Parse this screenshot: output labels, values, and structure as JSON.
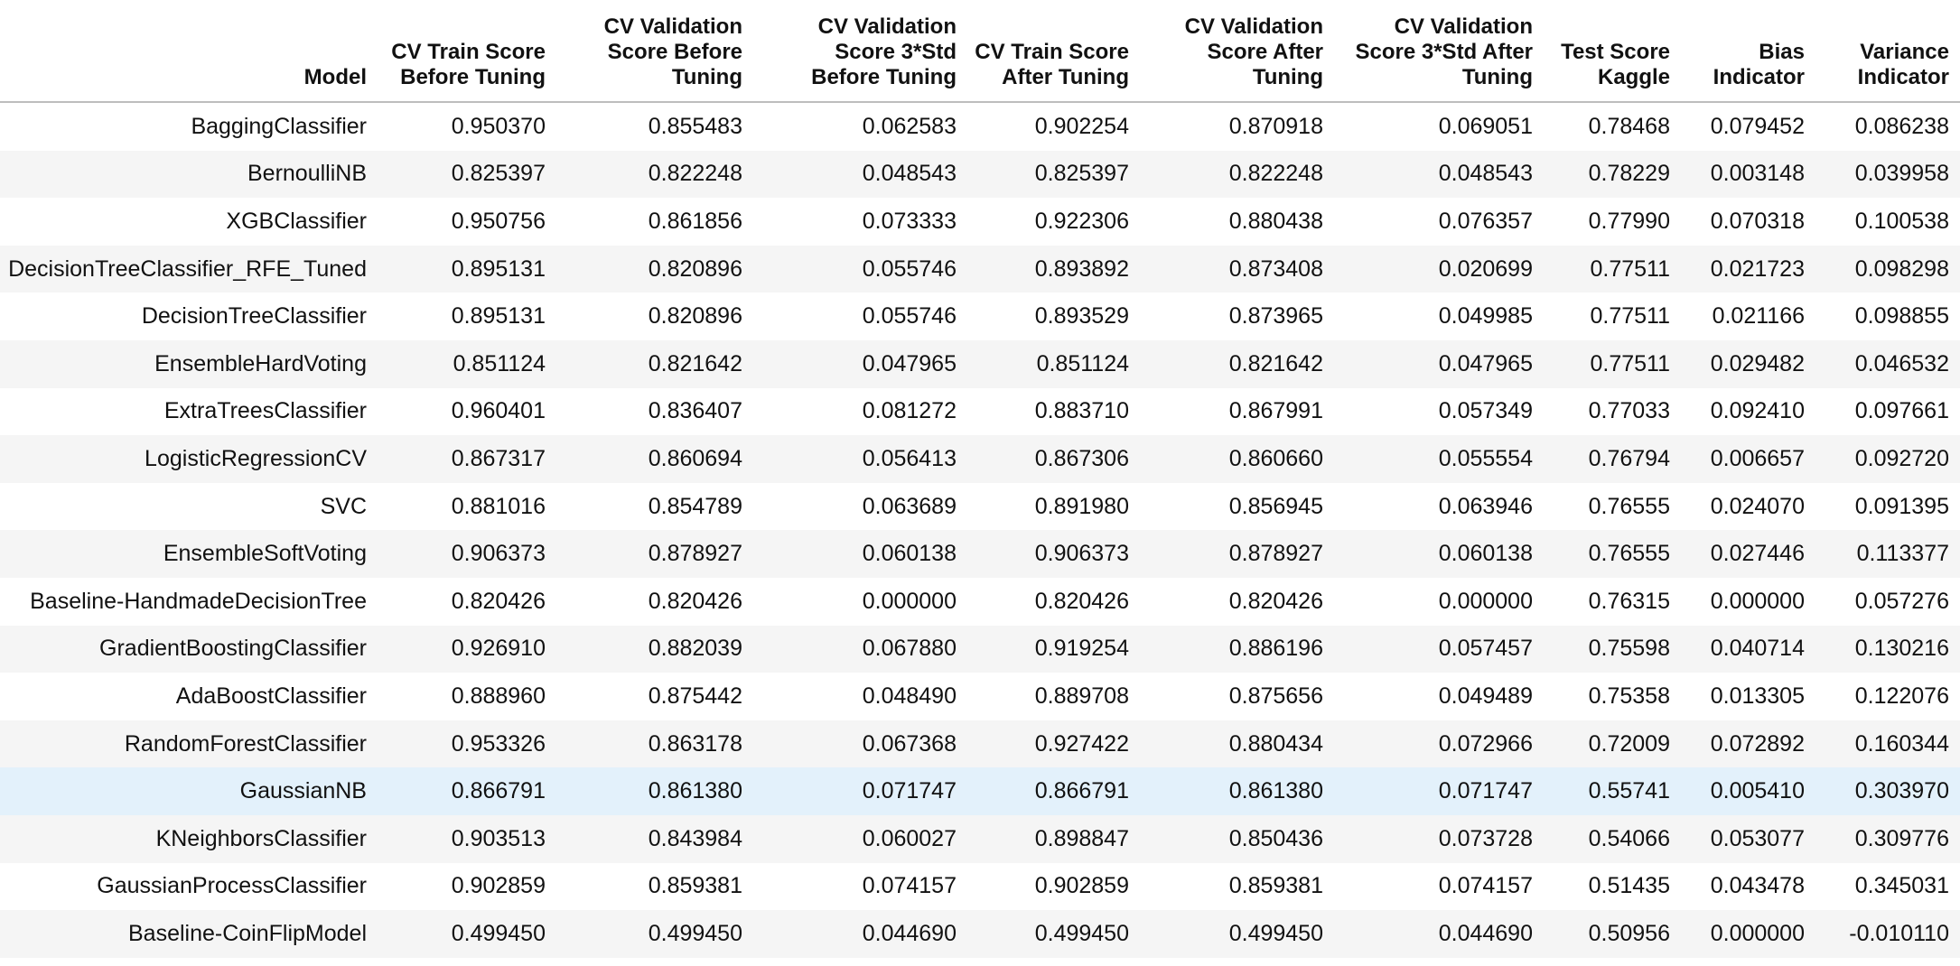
{
  "table": {
    "columns": [
      "Model",
      "CV Train Score Before Tuning",
      "CV Validation Score Before Tuning",
      "CV Validation Score 3*Std Before Tuning",
      "CV Train Score After Tuning",
      "CV Validation Score After Tuning",
      "CV Validation Score 3*Std After Tuning",
      "Test Score Kaggle",
      "Bias Indicator",
      "Variance Indicator"
    ],
    "highlighted_row": 14,
    "rows": [
      [
        "BaggingClassifier",
        "0.950370",
        "0.855483",
        "0.062583",
        "0.902254",
        "0.870918",
        "0.069051",
        "0.78468",
        "0.079452",
        "0.086238"
      ],
      [
        "BernoulliNB",
        "0.825397",
        "0.822248",
        "0.048543",
        "0.825397",
        "0.822248",
        "0.048543",
        "0.78229",
        "0.003148",
        "0.039958"
      ],
      [
        "XGBClassifier",
        "0.950756",
        "0.861856",
        "0.073333",
        "0.922306",
        "0.880438",
        "0.076357",
        "0.77990",
        "0.070318",
        "0.100538"
      ],
      [
        "DecisionTreeClassifier_RFE_Tuned",
        "0.895131",
        "0.820896",
        "0.055746",
        "0.893892",
        "0.873408",
        "0.020699",
        "0.77511",
        "0.021723",
        "0.098298"
      ],
      [
        "DecisionTreeClassifier",
        "0.895131",
        "0.820896",
        "0.055746",
        "0.893529",
        "0.873965",
        "0.049985",
        "0.77511",
        "0.021166",
        "0.098855"
      ],
      [
        "EnsembleHardVoting",
        "0.851124",
        "0.821642",
        "0.047965",
        "0.851124",
        "0.821642",
        "0.047965",
        "0.77511",
        "0.029482",
        "0.046532"
      ],
      [
        "ExtraTreesClassifier",
        "0.960401",
        "0.836407",
        "0.081272",
        "0.883710",
        "0.867991",
        "0.057349",
        "0.77033",
        "0.092410",
        "0.097661"
      ],
      [
        "LogisticRegressionCV",
        "0.867317",
        "0.860694",
        "0.056413",
        "0.867306",
        "0.860660",
        "0.055554",
        "0.76794",
        "0.006657",
        "0.092720"
      ],
      [
        "SVC",
        "0.881016",
        "0.854789",
        "0.063689",
        "0.891980",
        "0.856945",
        "0.063946",
        "0.76555",
        "0.024070",
        "0.091395"
      ],
      [
        "EnsembleSoftVoting",
        "0.906373",
        "0.878927",
        "0.060138",
        "0.906373",
        "0.878927",
        "0.060138",
        "0.76555",
        "0.027446",
        "0.113377"
      ],
      [
        "Baseline-HandmadeDecisionTree",
        "0.820426",
        "0.820426",
        "0.000000",
        "0.820426",
        "0.820426",
        "0.000000",
        "0.76315",
        "0.000000",
        "0.057276"
      ],
      [
        "GradientBoostingClassifier",
        "0.926910",
        "0.882039",
        "0.067880",
        "0.919254",
        "0.886196",
        "0.057457",
        "0.75598",
        "0.040714",
        "0.130216"
      ],
      [
        "AdaBoostClassifier",
        "0.888960",
        "0.875442",
        "0.048490",
        "0.889708",
        "0.875656",
        "0.049489",
        "0.75358",
        "0.013305",
        "0.122076"
      ],
      [
        "RandomForestClassifier",
        "0.953326",
        "0.863178",
        "0.067368",
        "0.927422",
        "0.880434",
        "0.072966",
        "0.72009",
        "0.072892",
        "0.160344"
      ],
      [
        "GaussianNB",
        "0.866791",
        "0.861380",
        "0.071747",
        "0.866791",
        "0.861380",
        "0.071747",
        "0.55741",
        "0.005410",
        "0.303970"
      ],
      [
        "KNeighborsClassifier",
        "0.903513",
        "0.843984",
        "0.060027",
        "0.898847",
        "0.850436",
        "0.073728",
        "0.54066",
        "0.053077",
        "0.309776"
      ],
      [
        "GaussianProcessClassifier",
        "0.902859",
        "0.859381",
        "0.074157",
        "0.902859",
        "0.859381",
        "0.074157",
        "0.51435",
        "0.043478",
        "0.345031"
      ],
      [
        "Baseline-CoinFlipModel",
        "0.499450",
        "0.499450",
        "0.044690",
        "0.499450",
        "0.499450",
        "0.044690",
        "0.50956",
        "0.000000",
        "-0.010110"
      ]
    ]
  }
}
